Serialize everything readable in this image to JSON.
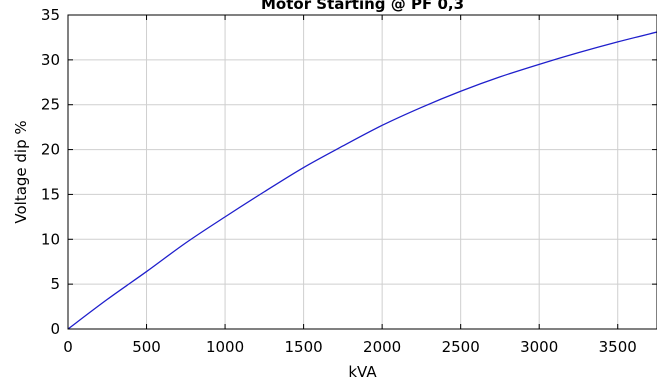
{
  "chart_data": {
    "type": "line",
    "title": "Motor Starting @ PF 0,3",
    "xlabel": "kVA",
    "ylabel": "Voltage dip %",
    "xlim": [
      0,
      3750
    ],
    "ylim": [
      0,
      35
    ],
    "xticks": [
      0,
      500,
      1000,
      1500,
      2000,
      2500,
      3000,
      3500
    ],
    "yticks": [
      0,
      5,
      10,
      15,
      20,
      25,
      30,
      35
    ],
    "grid": true,
    "series": [
      {
        "color": "#1f1fcc",
        "x": [
          0,
          250,
          500,
          750,
          1000,
          1250,
          1500,
          1750,
          2000,
          2250,
          2500,
          2750,
          3000,
          3250,
          3500,
          3750
        ],
        "y": [
          0,
          3.3,
          6.4,
          9.6,
          12.5,
          15.3,
          18.0,
          20.4,
          22.7,
          24.7,
          26.5,
          28.1,
          29.5,
          30.8,
          32.0,
          33.1
        ]
      }
    ]
  }
}
